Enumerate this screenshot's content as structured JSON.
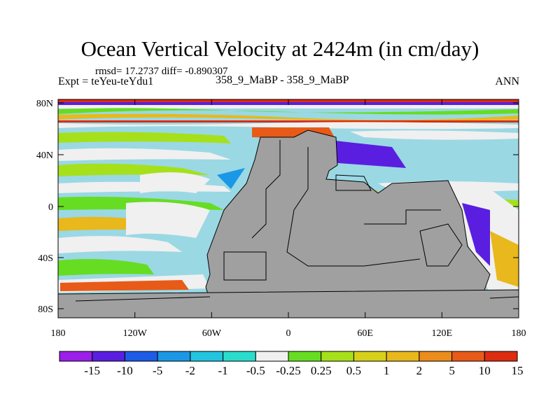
{
  "title": "Ocean Vertical Velocity at 2424m (in cm/day)",
  "stats": "rmsd= 17.2737 diff= -0.890307",
  "left_label": "Expt = teYeu-teYdu1",
  "center_label": "358_9_MaBP - 358_9_MaBP",
  "right_label": "ANN",
  "lat_ticks": [
    "80N",
    "40N",
    "0",
    "40S",
    "80S"
  ],
  "lon_ticks": [
    "180",
    "120W",
    "60W",
    "0",
    "60E",
    "120E",
    "180"
  ],
  "colorbar": {
    "colors": [
      "#9b1fe8",
      "#5a1ee0",
      "#1c5ce6",
      "#1a98e6",
      "#22c4e0",
      "#2bdccc",
      "#f0f0f0",
      "#66dd22",
      "#a6e01a",
      "#d6d01a",
      "#e8b81c",
      "#ec8c1c",
      "#e85a18",
      "#de2c10"
    ],
    "labels": [
      "-15",
      "-10",
      "-5",
      "-2",
      "-1",
      "-0.5",
      "-0.25",
      "0.25",
      "0.5",
      "1",
      "2",
      "5",
      "10",
      "15"
    ]
  },
  "colors": {
    "land": "#a0a0a0",
    "ocean_bg": "#9ad8e4"
  }
}
